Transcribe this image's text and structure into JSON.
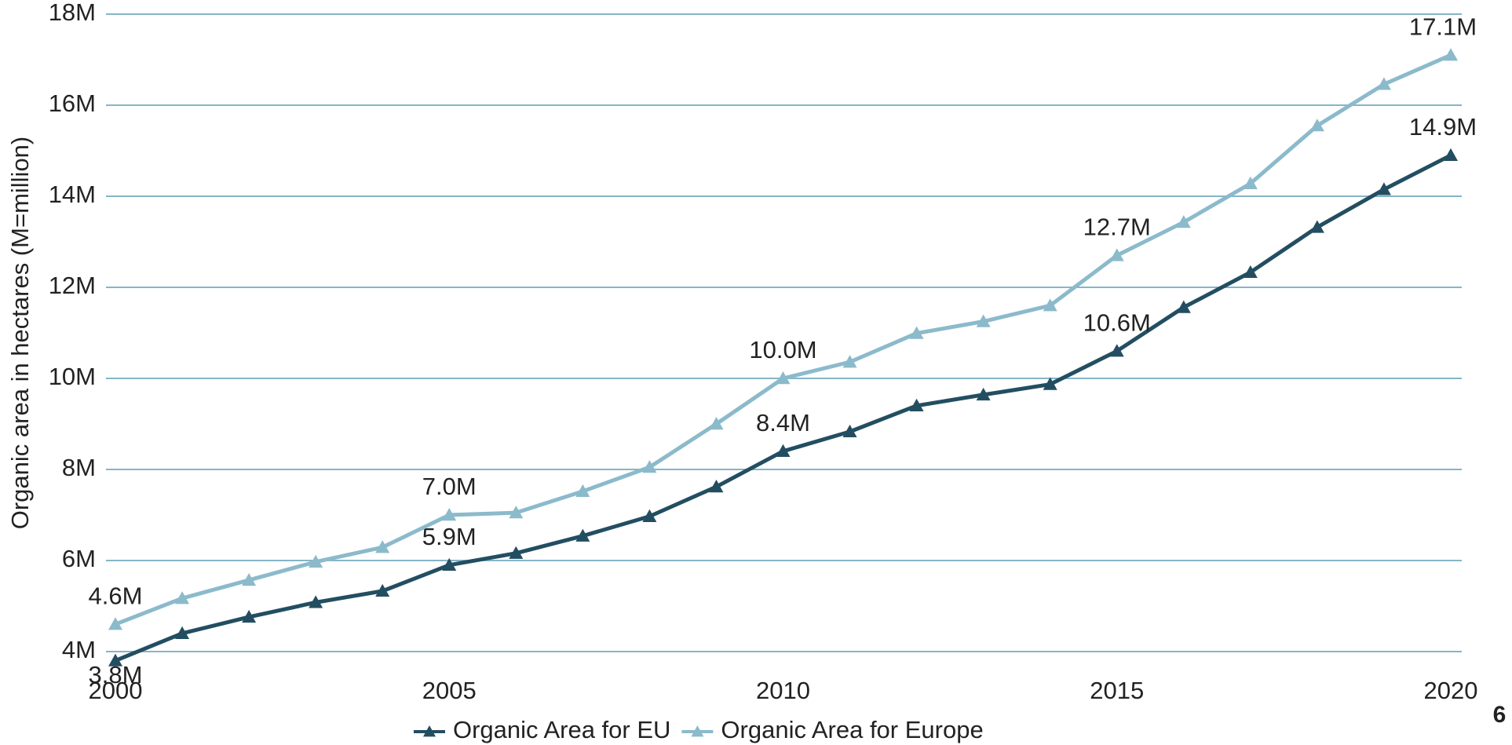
{
  "chart_data": {
    "type": "line",
    "ylabel": "Organic area in hectares (M=million)",
    "x": [
      2000,
      2001,
      2002,
      2003,
      2004,
      2005,
      2006,
      2007,
      2008,
      2009,
      2010,
      2011,
      2012,
      2013,
      2014,
      2015,
      2016,
      2017,
      2018,
      2019,
      2020
    ],
    "xlim": [
      2000,
      2020
    ],
    "xticks": [
      2000,
      2005,
      2010,
      2015,
      2020
    ],
    "ylim": [
      4,
      18
    ],
    "yticks": [
      {
        "value": 4,
        "label": "4M"
      },
      {
        "value": 6,
        "label": "6M"
      },
      {
        "value": 8,
        "label": "8M"
      },
      {
        "value": 10,
        "label": "10M"
      },
      {
        "value": 12,
        "label": "12M"
      },
      {
        "value": 14,
        "label": "14M"
      },
      {
        "value": 16,
        "label": "16M"
      },
      {
        "value": 18,
        "label": "18M"
      }
    ],
    "grid": true,
    "legend": "bottom",
    "series": [
      {
        "name": "Organic Area for EU",
        "color": "#234e61",
        "values": [
          3.8,
          4.4,
          4.76,
          5.08,
          5.33,
          5.9,
          6.16,
          6.54,
          6.97,
          7.62,
          8.4,
          8.83,
          9.4,
          9.64,
          9.87,
          10.6,
          11.56,
          12.33,
          13.32,
          14.15,
          14.9
        ],
        "value_labels": [
          "3.8M",
          null,
          null,
          null,
          null,
          "5.9M",
          null,
          null,
          null,
          null,
          "8.4M",
          null,
          null,
          null,
          null,
          "10.6M",
          null,
          null,
          null,
          null,
          "14.9M"
        ]
      },
      {
        "name": "Organic Area for Europe",
        "color": "#8bbacb",
        "values": [
          4.6,
          5.17,
          5.57,
          5.97,
          6.29,
          7.0,
          7.05,
          7.52,
          8.05,
          9.0,
          10.0,
          10.36,
          10.99,
          11.25,
          11.6,
          12.7,
          13.43,
          14.28,
          15.55,
          16.46,
          17.1
        ],
        "value_labels": [
          "4.6M",
          null,
          null,
          null,
          null,
          "7.0M",
          null,
          null,
          null,
          null,
          "10.0M",
          null,
          null,
          null,
          null,
          "12.7M",
          null,
          null,
          null,
          null,
          "17.1M"
        ]
      }
    ],
    "page_number": "6"
  }
}
